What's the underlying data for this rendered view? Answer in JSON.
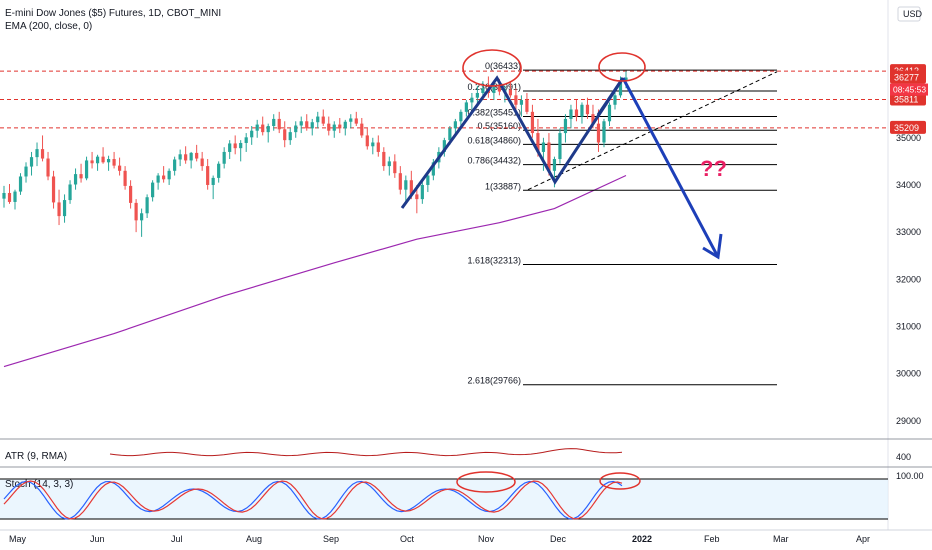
{
  "header": {
    "title": "E-mini Dow Jones ($5) Futures, 1D, CBOT_MINI",
    "ema": "EMA (200, close, 0)",
    "currency": "USD"
  },
  "price_tags": {
    "high": "36413",
    "last": "36277",
    "countdown": "08:45:53",
    "mid": "35811",
    "low": "35209"
  },
  "indicators": {
    "atr": "ATR (9, RMA)",
    "atr_level": "400",
    "stoch": "Stoch (14, 3, 3)",
    "stoch_level": "100.00"
  },
  "annotation": {
    "question": "??"
  },
  "colors": {
    "candle_up": "#26a69a",
    "candle_down": "#ef5350",
    "ema": "#9c27b0",
    "pattern": "#1e3a8a",
    "arrow": "#1d3fb8",
    "dashed_level": "#e0332d",
    "circle": "#e0332d",
    "question": "#e91e63",
    "stoch_k": "#2962ff",
    "stoch_d": "#e53935",
    "atr": "#b71c1c"
  },
  "chart_data": {
    "type": "candlestick",
    "price_axis": {
      "ticks": [
        29000,
        30000,
        31000,
        32000,
        33000,
        34000,
        35000
      ],
      "ylim": [
        28700,
        37200
      ]
    },
    "time_axis": {
      "labels": [
        "May",
        "Jun",
        "Jul",
        "Aug",
        "Sep",
        "Oct",
        "Nov",
        "Dec",
        "2022",
        "Feb",
        "Mar",
        "Apr"
      ]
    },
    "fibonacci": [
      {
        "ratio": "0",
        "value": 36433
      },
      {
        "ratio": "0.236",
        "value": 35991
      },
      {
        "ratio": "0.382",
        "value": 35451
      },
      {
        "ratio": "0.5",
        "value": 35160
      },
      {
        "ratio": "0.618",
        "value": 34860
      },
      {
        "ratio": "0.786",
        "value": 34432
      },
      {
        "ratio": "1",
        "value": 33887
      },
      {
        "ratio": "1.618",
        "value": 32313
      },
      {
        "ratio": "2.618",
        "value": 29766
      }
    ],
    "dashed_levels": [
      36413,
      35811,
      35209
    ],
    "pattern_points": [
      {
        "date": "Oct",
        "value": 33350
      },
      {
        "date": "Nov",
        "value": 35900
      },
      {
        "date": "Dec",
        "value": 33880
      },
      {
        "date": "Dec",
        "value": 35880
      },
      {
        "date": "Feb",
        "value": 32300
      }
    ],
    "candles": [
      {
        "o": 33710,
        "h": 33980,
        "l": 33520,
        "c": 33830
      },
      {
        "o": 33830,
        "h": 34020,
        "l": 33600,
        "c": 33640
      },
      {
        "o": 33640,
        "h": 33900,
        "l": 33480,
        "c": 33860
      },
      {
        "o": 33860,
        "h": 34250,
        "l": 33790,
        "c": 34180
      },
      {
        "o": 34180,
        "h": 34480,
        "l": 34050,
        "c": 34390
      },
      {
        "o": 34390,
        "h": 34700,
        "l": 34200,
        "c": 34590
      },
      {
        "o": 34590,
        "h": 34900,
        "l": 34400,
        "c": 34760
      },
      {
        "o": 34760,
        "h": 35050,
        "l": 34500,
        "c": 34560
      },
      {
        "o": 34560,
        "h": 34700,
        "l": 34100,
        "c": 34180
      },
      {
        "o": 34180,
        "h": 34300,
        "l": 33500,
        "c": 33630
      },
      {
        "o": 33630,
        "h": 33900,
        "l": 33150,
        "c": 33340
      },
      {
        "o": 33340,
        "h": 33800,
        "l": 33200,
        "c": 33680
      },
      {
        "o": 33680,
        "h": 34100,
        "l": 33600,
        "c": 34010
      },
      {
        "o": 34010,
        "h": 34350,
        "l": 33900,
        "c": 34230
      },
      {
        "o": 34230,
        "h": 34450,
        "l": 34050,
        "c": 34140
      },
      {
        "o": 34140,
        "h": 34600,
        "l": 34100,
        "c": 34520
      },
      {
        "o": 34520,
        "h": 34700,
        "l": 34350,
        "c": 34460
      },
      {
        "o": 34460,
        "h": 34640,
        "l": 34300,
        "c": 34600
      },
      {
        "o": 34600,
        "h": 34800,
        "l": 34450,
        "c": 34480
      },
      {
        "o": 34480,
        "h": 34620,
        "l": 34300,
        "c": 34550
      },
      {
        "o": 34550,
        "h": 34700,
        "l": 34350,
        "c": 34410
      },
      {
        "o": 34410,
        "h": 34580,
        "l": 34200,
        "c": 34300
      },
      {
        "o": 34300,
        "h": 34400,
        "l": 33900,
        "c": 33980
      },
      {
        "o": 33980,
        "h": 34100,
        "l": 33500,
        "c": 33620
      },
      {
        "o": 33620,
        "h": 33700,
        "l": 33000,
        "c": 33250
      },
      {
        "o": 33250,
        "h": 33500,
        "l": 32900,
        "c": 33400
      },
      {
        "o": 33400,
        "h": 33800,
        "l": 33300,
        "c": 33740
      },
      {
        "o": 33740,
        "h": 34100,
        "l": 33650,
        "c": 34050
      },
      {
        "o": 34050,
        "h": 34250,
        "l": 33900,
        "c": 34200
      },
      {
        "o": 34200,
        "h": 34400,
        "l": 34050,
        "c": 34120
      },
      {
        "o": 34120,
        "h": 34350,
        "l": 34000,
        "c": 34300
      },
      {
        "o": 34300,
        "h": 34600,
        "l": 34200,
        "c": 34540
      },
      {
        "o": 34540,
        "h": 34750,
        "l": 34400,
        "c": 34650
      },
      {
        "o": 34650,
        "h": 34820,
        "l": 34450,
        "c": 34520
      },
      {
        "o": 34520,
        "h": 34700,
        "l": 34350,
        "c": 34680
      },
      {
        "o": 34680,
        "h": 34850,
        "l": 34500,
        "c": 34560
      },
      {
        "o": 34560,
        "h": 34700,
        "l": 34300,
        "c": 34400
      },
      {
        "o": 34400,
        "h": 34550,
        "l": 33900,
        "c": 34000
      },
      {
        "o": 34000,
        "h": 34200,
        "l": 33700,
        "c": 34150
      },
      {
        "o": 34150,
        "h": 34500,
        "l": 34050,
        "c": 34450
      },
      {
        "o": 34450,
        "h": 34800,
        "l": 34350,
        "c": 34700
      },
      {
        "o": 34700,
        "h": 34950,
        "l": 34550,
        "c": 34880
      },
      {
        "o": 34880,
        "h": 35050,
        "l": 34650,
        "c": 34780
      },
      {
        "o": 34780,
        "h": 34950,
        "l": 34500,
        "c": 34890
      },
      {
        "o": 34890,
        "h": 35100,
        "l": 34700,
        "c": 35010
      },
      {
        "o": 35010,
        "h": 35250,
        "l": 34850,
        "c": 35150
      },
      {
        "o": 35150,
        "h": 35380,
        "l": 35000,
        "c": 35280
      },
      {
        "o": 35280,
        "h": 35450,
        "l": 35050,
        "c": 35120
      },
      {
        "o": 35120,
        "h": 35300,
        "l": 34900,
        "c": 35250
      },
      {
        "o": 35250,
        "h": 35500,
        "l": 35150,
        "c": 35400
      },
      {
        "o": 35400,
        "h": 35550,
        "l": 35100,
        "c": 35180
      },
      {
        "o": 35180,
        "h": 35350,
        "l": 34800,
        "c": 34950
      },
      {
        "o": 34950,
        "h": 35200,
        "l": 34850,
        "c": 35120
      },
      {
        "o": 35120,
        "h": 35350,
        "l": 35000,
        "c": 35260
      },
      {
        "o": 35260,
        "h": 35450,
        "l": 35100,
        "c": 35350
      },
      {
        "o": 35350,
        "h": 35500,
        "l": 35150,
        "c": 35200
      },
      {
        "o": 35200,
        "h": 35400,
        "l": 35050,
        "c": 35330
      },
      {
        "o": 35330,
        "h": 35550,
        "l": 35200,
        "c": 35450
      },
      {
        "o": 35450,
        "h": 35600,
        "l": 35250,
        "c": 35300
      },
      {
        "o": 35300,
        "h": 35450,
        "l": 35050,
        "c": 35150
      },
      {
        "o": 35150,
        "h": 35350,
        "l": 35000,
        "c": 35280
      },
      {
        "o": 35280,
        "h": 35420,
        "l": 35100,
        "c": 35200
      },
      {
        "o": 35200,
        "h": 35380,
        "l": 35050,
        "c": 35340
      },
      {
        "o": 35340,
        "h": 35500,
        "l": 35200,
        "c": 35410
      },
      {
        "o": 35410,
        "h": 35550,
        "l": 35250,
        "c": 35300
      },
      {
        "o": 35300,
        "h": 35420,
        "l": 35000,
        "c": 35050
      },
      {
        "o": 35050,
        "h": 35200,
        "l": 34750,
        "c": 34820
      },
      {
        "o": 34820,
        "h": 35000,
        "l": 34650,
        "c": 34900
      },
      {
        "o": 34900,
        "h": 35050,
        "l": 34600,
        "c": 34700
      },
      {
        "o": 34700,
        "h": 34800,
        "l": 34300,
        "c": 34400
      },
      {
        "o": 34400,
        "h": 34600,
        "l": 34200,
        "c": 34500
      },
      {
        "o": 34500,
        "h": 34650,
        "l": 34150,
        "c": 34250
      },
      {
        "o": 34250,
        "h": 34400,
        "l": 33800,
        "c": 33900
      },
      {
        "o": 33900,
        "h": 34200,
        "l": 33600,
        "c": 34100
      },
      {
        "o": 34100,
        "h": 34300,
        "l": 33700,
        "c": 33800
      },
      {
        "o": 33800,
        "h": 34000,
        "l": 33400,
        "c": 33700
      },
      {
        "o": 33700,
        "h": 34100,
        "l": 33600,
        "c": 34000
      },
      {
        "o": 34000,
        "h": 34300,
        "l": 33850,
        "c": 34200
      },
      {
        "o": 34200,
        "h": 34550,
        "l": 34100,
        "c": 34480
      },
      {
        "o": 34480,
        "h": 34800,
        "l": 34350,
        "c": 34700
      },
      {
        "o": 34700,
        "h": 35000,
        "l": 34600,
        "c": 34950
      },
      {
        "o": 34950,
        "h": 35250,
        "l": 34850,
        "c": 35200
      },
      {
        "o": 35200,
        "h": 35400,
        "l": 35050,
        "c": 35350
      },
      {
        "o": 35350,
        "h": 35600,
        "l": 35200,
        "c": 35550
      },
      {
        "o": 35550,
        "h": 35800,
        "l": 35450,
        "c": 35750
      },
      {
        "o": 35750,
        "h": 35950,
        "l": 35600,
        "c": 35850
      },
      {
        "o": 35850,
        "h": 36100,
        "l": 35700,
        "c": 35950
      },
      {
        "o": 35950,
        "h": 36200,
        "l": 35800,
        "c": 36050
      },
      {
        "o": 36050,
        "h": 36300,
        "l": 35850,
        "c": 35950
      },
      {
        "o": 35950,
        "h": 36150,
        "l": 35800,
        "c": 36080
      },
      {
        "o": 36080,
        "h": 36250,
        "l": 35900,
        "c": 35980
      },
      {
        "o": 35980,
        "h": 36100,
        "l": 35750,
        "c": 36020
      },
      {
        "o": 36020,
        "h": 36200,
        "l": 35850,
        "c": 35900
      },
      {
        "o": 35900,
        "h": 36050,
        "l": 35600,
        "c": 35700
      },
      {
        "o": 35700,
        "h": 35900,
        "l": 35450,
        "c": 35800
      },
      {
        "o": 35800,
        "h": 35950,
        "l": 35500,
        "c": 35550
      },
      {
        "o": 35550,
        "h": 35700,
        "l": 35000,
        "c": 35100
      },
      {
        "o": 35100,
        "h": 35400,
        "l": 34600,
        "c": 34700
      },
      {
        "o": 34700,
        "h": 35000,
        "l": 34300,
        "c": 34900
      },
      {
        "o": 34900,
        "h": 35100,
        "l": 34200,
        "c": 34300
      },
      {
        "o": 34300,
        "h": 34600,
        "l": 33950,
        "c": 34550
      },
      {
        "o": 34550,
        "h": 35200,
        "l": 34450,
        "c": 35100
      },
      {
        "o": 35100,
        "h": 35500,
        "l": 34900,
        "c": 35400
      },
      {
        "o": 35400,
        "h": 35700,
        "l": 35200,
        "c": 35600
      },
      {
        "o": 35600,
        "h": 35800,
        "l": 35350,
        "c": 35450
      },
      {
        "o": 35450,
        "h": 35750,
        "l": 35300,
        "c": 35700
      },
      {
        "o": 35700,
        "h": 35850,
        "l": 35400,
        "c": 35500
      },
      {
        "o": 35500,
        "h": 35700,
        "l": 35200,
        "c": 35300
      },
      {
        "o": 35300,
        "h": 35600,
        "l": 34700,
        "c": 34900
      },
      {
        "o": 34900,
        "h": 35400,
        "l": 34800,
        "c": 35350
      },
      {
        "o": 35350,
        "h": 35750,
        "l": 35250,
        "c": 35700
      },
      {
        "o": 35700,
        "h": 36000,
        "l": 35600,
        "c": 35900
      },
      {
        "o": 35900,
        "h": 36300,
        "l": 35850,
        "c": 36200
      },
      {
        "o": 36200,
        "h": 36420,
        "l": 36050,
        "c": 36277
      }
    ],
    "ema200": [
      {
        "i": 0,
        "value": 30150
      },
      {
        "i": 20,
        "value": 30850
      },
      {
        "i": 40,
        "value": 31650
      },
      {
        "i": 60,
        "value": 32350
      },
      {
        "i": 75,
        "value": 32850
      },
      {
        "i": 90,
        "value": 33200
      },
      {
        "i": 100,
        "value": 33500
      },
      {
        "i": 113,
        "value": 34200
      }
    ]
  }
}
